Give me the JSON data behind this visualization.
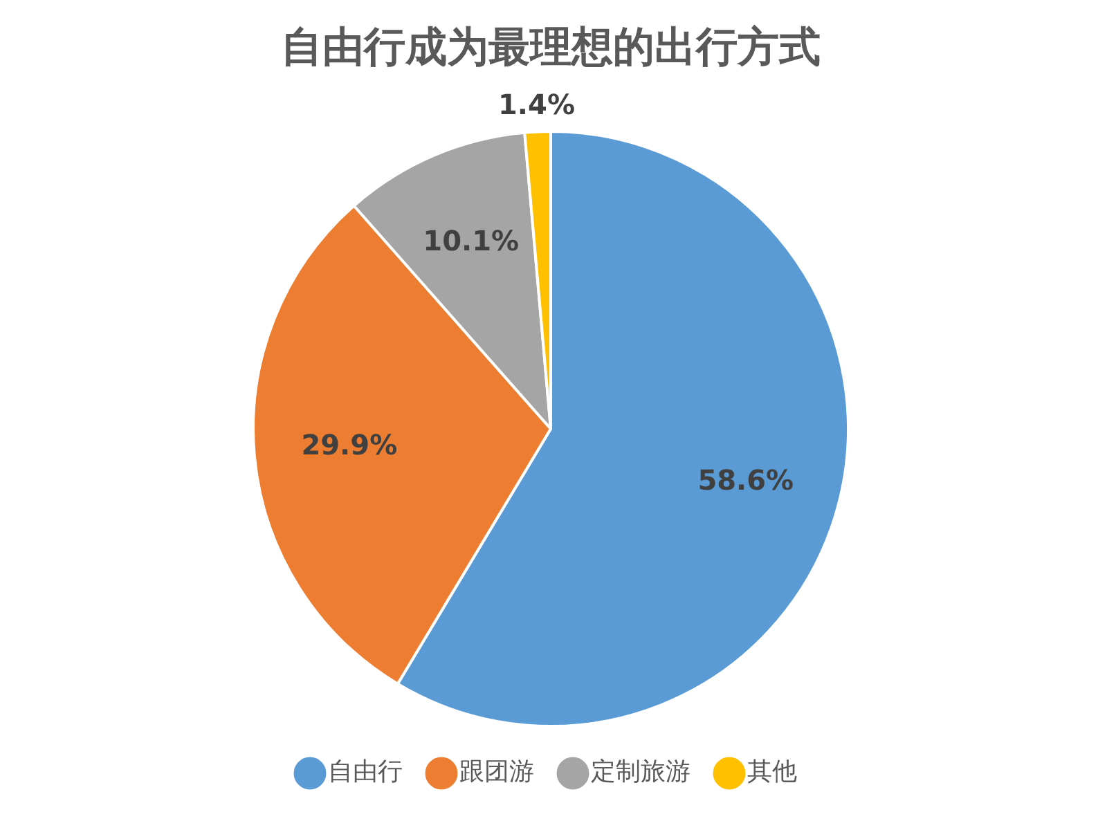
{
  "chart_data": {
    "type": "pie",
    "title": "自由行成为最理想的出行方式",
    "categories": [
      "自由行",
      "跟团游",
      "定制旅游",
      "其他"
    ],
    "values": [
      58.6,
      29.9,
      10.1,
      1.4
    ],
    "colors": [
      "#5b9bd5",
      "#ed7d31",
      "#a5a5a5",
      "#ffc000"
    ],
    "value_labels": [
      "58.6%",
      "29.9%",
      "10.1%",
      "1.4%"
    ],
    "legend": "bottom"
  }
}
